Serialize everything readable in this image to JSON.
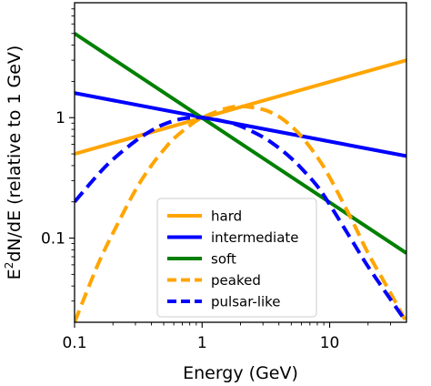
{
  "chart_data": {
    "type": "line",
    "title": "",
    "xlabel": "Energy (GeV)",
    "ylabel_main": "E",
    "ylabel_sup": "2",
    "ylabel_rest": "dN/dE (relative to 1 GeV)",
    "x_scale": "log",
    "y_scale": "log",
    "xlim": [
      0.1,
      40
    ],
    "ylim": [
      0.02,
      9
    ],
    "grid": false,
    "legend_position": "bottom-center",
    "x_ticks": [
      {
        "value": 0.1,
        "label": "0.1"
      },
      {
        "value": 1,
        "label": "1"
      },
      {
        "value": 10,
        "label": "10"
      }
    ],
    "y_ticks": [
      {
        "value": 0.1,
        "label": "0.1"
      },
      {
        "value": 1,
        "label": "1"
      }
    ],
    "series": [
      {
        "name": "hard",
        "color": "#ffa500",
        "dash": "solid",
        "x": [
          0.1,
          40
        ],
        "y": [
          0.5,
          3.0
        ]
      },
      {
        "name": "intermediate",
        "color": "#0000ff",
        "dash": "solid",
        "x": [
          0.1,
          40
        ],
        "y": [
          1.6,
          0.48
        ]
      },
      {
        "name": "soft",
        "color": "#008000",
        "dash": "solid",
        "x": [
          0.1,
          40
        ],
        "y": [
          5.0,
          0.075
        ]
      },
      {
        "name": "peaked",
        "color": "#ffa500",
        "dash": "dashed",
        "x": [
          0.1,
          0.15,
          0.2,
          0.3,
          0.4,
          0.5,
          0.6,
          0.8,
          1.0,
          1.5,
          2.0,
          3.0,
          4.0,
          5.0,
          6.0,
          8.0,
          10,
          15,
          20,
          30,
          40
        ],
        "y": [
          0.02,
          0.058,
          0.11,
          0.25,
          0.4,
          0.54,
          0.67,
          0.86,
          1.0,
          1.18,
          1.24,
          1.17,
          1.02,
          0.85,
          0.7,
          0.47,
          0.32,
          0.14,
          0.075,
          0.035,
          0.02
        ]
      },
      {
        "name": "pulsar-like",
        "color": "#0000ff",
        "dash": "dashed",
        "x": [
          0.1,
          0.15,
          0.2,
          0.3,
          0.4,
          0.5,
          0.7,
          1.0,
          1.5,
          2.0,
          3.0,
          4.0,
          5.0,
          6.0,
          8.0,
          10,
          15,
          20,
          30,
          40
        ],
        "y": [
          0.2,
          0.33,
          0.45,
          0.64,
          0.78,
          0.88,
          0.98,
          1.0,
          0.93,
          0.85,
          0.69,
          0.56,
          0.46,
          0.38,
          0.27,
          0.19,
          0.095,
          0.058,
          0.031,
          0.02
        ]
      }
    ]
  }
}
